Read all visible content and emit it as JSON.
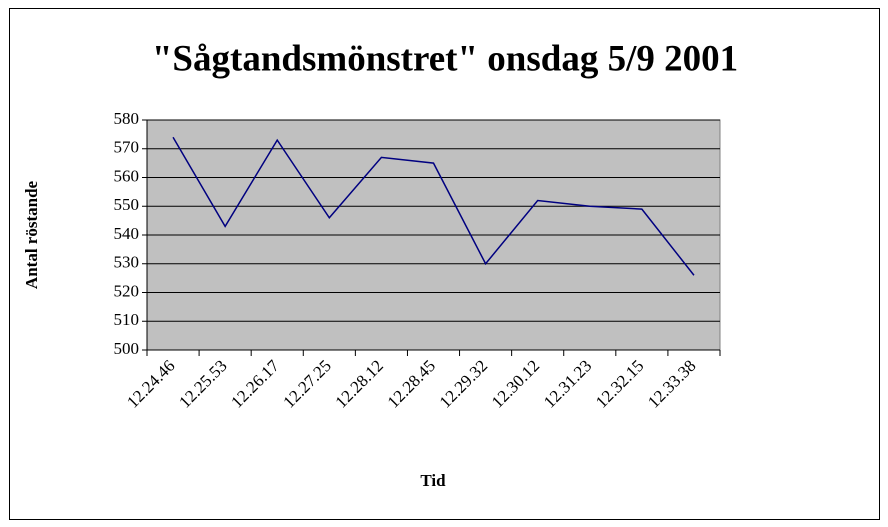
{
  "chart_data": {
    "type": "line",
    "title": "\"Sågtandsmönstret\" onsdag 5/9 2001",
    "x_label": "Tid",
    "y_label": "Antal röstande",
    "categories": [
      "12.24.46",
      "12.25.53",
      "12.26.17",
      "12.27.25",
      "12.28.12",
      "12.28.45",
      "12.29.32",
      "12.30.12",
      "12.31.23",
      "12.32.15",
      "12.33.38"
    ],
    "series": [
      {
        "name": "Antal röstande",
        "color": "#000080",
        "values": [
          574,
          543,
          573,
          546,
          567,
          565,
          530,
          552,
          550,
          549,
          526
        ]
      }
    ],
    "ylim": [
      500,
      580
    ],
    "yticks": [
      500,
      510,
      520,
      530,
      540,
      550,
      560,
      570,
      580
    ],
    "grid": true
  }
}
